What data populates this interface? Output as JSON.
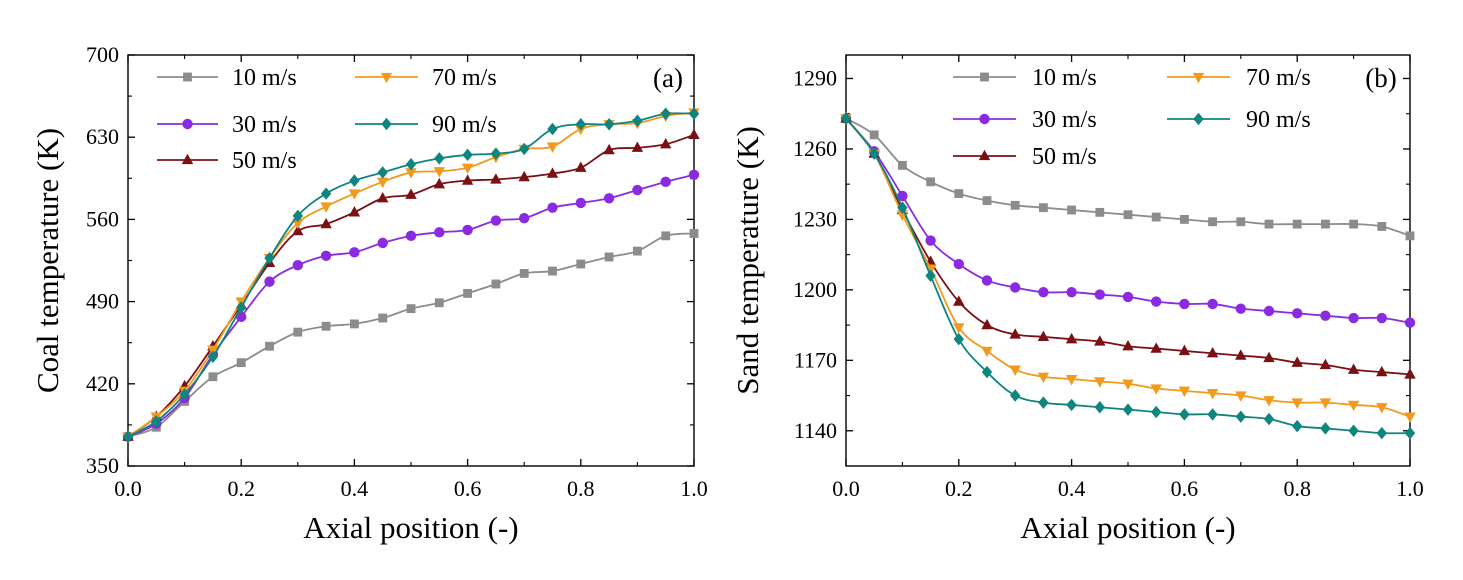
{
  "palette": {
    "10 m/s": "#8c8c8c",
    "30 m/s": "#8a2be2",
    "50 m/s": "#7b1014",
    "70 m/s": "#f29a1d",
    "90 m/s": "#0f8580"
  },
  "chart_data": [
    {
      "type": "line",
      "panel_label": "(a)",
      "xlabel": "Axial position (-)",
      "ylabel": "Coal temperature (K)",
      "xlim": [
        0,
        1
      ],
      "ylim": [
        350,
        700
      ],
      "xticks": [
        "0.0",
        "0.2",
        "0.4",
        "0.6",
        "0.8",
        "1.0"
      ],
      "yticks": [
        "350",
        "420",
        "490",
        "560",
        "630",
        "700"
      ],
      "x": [
        0,
        0.05,
        0.1,
        0.15,
        0.2,
        0.25,
        0.3,
        0.35,
        0.4,
        0.45,
        0.5,
        0.55,
        0.6,
        0.65,
        0.7,
        0.75,
        0.8,
        0.85,
        0.9,
        0.95,
        1.0
      ],
      "series": [
        {
          "name": "10 m/s",
          "marker": "square",
          "values": [
            375,
            383,
            405,
            426,
            438,
            452,
            464,
            469,
            471,
            476,
            484,
            489,
            497,
            505,
            514,
            516,
            522,
            528,
            533,
            546,
            548
          ]
        },
        {
          "name": "30 m/s",
          "marker": "circle",
          "values": [
            375,
            386,
            408,
            445,
            477,
            507,
            521,
            529,
            532,
            540,
            546,
            549,
            551,
            559,
            561,
            570,
            574,
            578,
            585,
            592,
            598
          ]
        },
        {
          "name": "50 m/s",
          "marker": "triangle-up",
          "values": [
            375,
            392,
            418,
            452,
            487,
            523,
            550,
            556,
            566,
            578,
            581,
            590,
            593,
            594,
            596,
            599,
            604,
            619,
            621,
            624,
            632
          ]
        },
        {
          "name": "70 m/s",
          "marker": "triangle-down",
          "values": [
            375,
            392,
            414,
            449,
            490,
            527,
            557,
            571,
            582,
            592,
            600,
            601,
            604,
            613,
            620,
            622,
            637,
            641,
            642,
            648,
            651
          ]
        },
        {
          "name": "90 m/s",
          "marker": "diamond",
          "values": [
            375,
            388,
            411,
            443,
            485,
            527,
            563,
            582,
            593,
            600,
            607,
            612,
            615,
            616,
            620,
            637,
            641,
            641,
            644,
            650,
            650
          ]
        }
      ]
    },
    {
      "type": "line",
      "panel_label": "(b)",
      "xlabel": "Axial position (-)",
      "ylabel": "Sand temperature (K)",
      "xlim": [
        0,
        1
      ],
      "ylim": [
        1125,
        1300
      ],
      "xticks": [
        "0.0",
        "0.2",
        "0.4",
        "0.6",
        "0.8",
        "1.0"
      ],
      "yticks": [
        "1140",
        "1170",
        "1200",
        "1230",
        "1260",
        "1290"
      ],
      "x": [
        0,
        0.05,
        0.1,
        0.15,
        0.2,
        0.25,
        0.3,
        0.35,
        0.4,
        0.45,
        0.5,
        0.55,
        0.6,
        0.65,
        0.7,
        0.75,
        0.8,
        0.85,
        0.9,
        0.95,
        1.0
      ],
      "series": [
        {
          "name": "10 m/s",
          "marker": "square",
          "values": [
            1273,
            1266,
            1253,
            1246,
            1241,
            1238,
            1236,
            1235,
            1234,
            1233,
            1232,
            1231,
            1230,
            1229,
            1229,
            1228,
            1228,
            1228,
            1228,
            1227,
            1223
          ]
        },
        {
          "name": "30 m/s",
          "marker": "circle",
          "values": [
            1273,
            1259,
            1240,
            1221,
            1211,
            1204,
            1201,
            1199,
            1199,
            1198,
            1197,
            1195,
            1194,
            1194,
            1192,
            1191,
            1190,
            1189,
            1188,
            1188,
            1186
          ]
        },
        {
          "name": "50 m/s",
          "marker": "triangle-up",
          "values": [
            1273,
            1258,
            1234,
            1212,
            1195,
            1185,
            1181,
            1180,
            1179,
            1178,
            1176,
            1175,
            1174,
            1173,
            1172,
            1171,
            1169,
            1168,
            1166,
            1165,
            1164
          ]
        },
        {
          "name": "70 m/s",
          "marker": "triangle-down",
          "values": [
            1273,
            1258,
            1232,
            1209,
            1184,
            1174,
            1166,
            1163,
            1162,
            1161,
            1160,
            1158,
            1157,
            1156,
            1155,
            1153,
            1152,
            1152,
            1151,
            1150,
            1146
          ]
        },
        {
          "name": "90 m/s",
          "marker": "diamond",
          "values": [
            1273,
            1258,
            1235,
            1206,
            1179,
            1165,
            1155,
            1152,
            1151,
            1150,
            1149,
            1148,
            1147,
            1147,
            1146,
            1145,
            1142,
            1141,
            1140,
            1139,
            1139
          ]
        }
      ]
    }
  ]
}
